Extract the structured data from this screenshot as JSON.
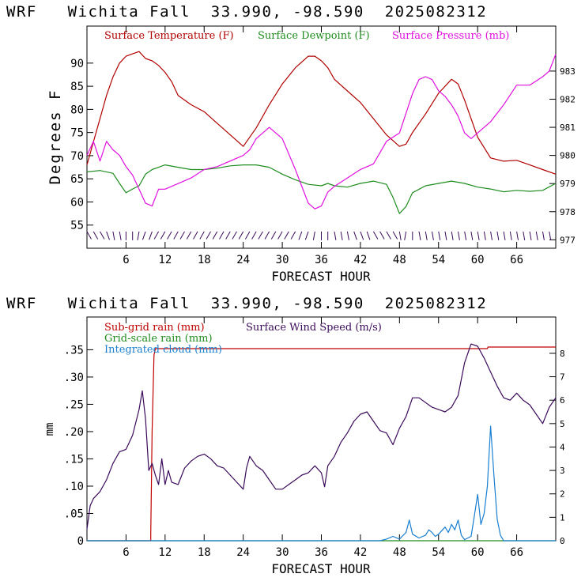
{
  "colors": {
    "temperature": "#b00000",
    "dewpoint": "#1e8c1e",
    "pressure": "#e010e0",
    "subgrid_rain": "#c00000",
    "gridscale_rain": "#1e8c1e",
    "cloud": "#1a7fd0",
    "wind": "#3a0a5a",
    "barb": "#3a0a5a"
  },
  "chart_data": [
    {
      "type": "line",
      "title": "WRF   Wichita Fall  33.990, -98.590  2025082312",
      "xlabel": "FORECAST HOUR",
      "ylabel": "Degrees F",
      "xlim": [
        0,
        72
      ],
      "x_ticks": [
        6,
        12,
        18,
        24,
        30,
        36,
        42,
        48,
        54,
        60,
        66
      ],
      "x_tick_labels": [
        "6",
        "12",
        "18",
        "24",
        "30",
        "36",
        "42",
        "48",
        "54",
        "60",
        "66"
      ],
      "ylim": [
        50,
        98
      ],
      "y_ticks": [
        55,
        60,
        65,
        70,
        75,
        80,
        85,
        90
      ],
      "y_tick_labels": [
        "55",
        "60",
        "65",
        "70",
        "75",
        "80",
        "85",
        "90"
      ],
      "y2lim": [
        976.7,
        984.6
      ],
      "y2_ticks": [
        977,
        978,
        979,
        980,
        981,
        982,
        983
      ],
      "y2_tick_labels": [
        "977",
        "978",
        "979",
        "980",
        "981",
        "982",
        "983"
      ],
      "series": [
        {
          "name": "Surface Temperature (F)",
          "axis": "left",
          "x": [
            0,
            1,
            2,
            3,
            4,
            5,
            6,
            7,
            8,
            9,
            10,
            11,
            12,
            13,
            14,
            16,
            18,
            20,
            22,
            24,
            26,
            28,
            30,
            32,
            34,
            35,
            36,
            37,
            38,
            40,
            42,
            44,
            46,
            48,
            49,
            50,
            52,
            54,
            56,
            57,
            58,
            59,
            60,
            62,
            64,
            66,
            68,
            70,
            72
          ],
          "y": [
            68,
            73,
            78,
            83,
            87,
            90,
            91.5,
            92,
            92.5,
            91,
            90.5,
            89.5,
            88,
            86,
            83,
            81,
            79.5,
            77,
            74.5,
            72,
            76,
            81,
            85.5,
            89,
            91.5,
            91.5,
            90.5,
            89,
            86.5,
            84,
            81.5,
            78,
            74.5,
            72,
            72.5,
            75,
            79,
            83.5,
            86.5,
            85.5,
            82,
            78,
            74,
            69.5,
            68.8,
            69,
            68,
            67,
            66
          ]
        },
        {
          "name": "Surface Dewpoint (F)",
          "axis": "left",
          "x": [
            0,
            2,
            4,
            5,
            6,
            7,
            8,
            9,
            10,
            11,
            12,
            14,
            16,
            18,
            20,
            22,
            24,
            26,
            28,
            30,
            32,
            34,
            36,
            37,
            38,
            40,
            42,
            44,
            46,
            47,
            48,
            49,
            50,
            52,
            54,
            56,
            58,
            60,
            62,
            64,
            66,
            68,
            70,
            72
          ],
          "y": [
            66.5,
            66.8,
            66.2,
            64,
            62,
            62.8,
            63.5,
            66,
            67,
            67.5,
            68,
            67.5,
            67,
            67,
            67.3,
            67.8,
            68,
            68,
            67.5,
            66,
            64.8,
            63.8,
            63.5,
            64,
            63.5,
            63.2,
            64,
            64.5,
            63.8,
            61,
            57.5,
            59,
            62,
            63.5,
            64,
            64.5,
            64,
            63.2,
            62.8,
            62.2,
            62.5,
            62.3,
            62.5,
            64
          ]
        },
        {
          "name": "Surface Pressure (mb)",
          "axis": "right",
          "x": [
            0,
            1,
            2,
            3,
            4,
            5,
            6,
            7,
            8,
            9,
            10,
            11,
            12,
            14,
            16,
            18,
            20,
            22,
            24,
            25,
            26,
            27,
            28,
            30,
            32,
            34,
            35,
            36,
            37,
            38,
            40,
            42,
            44,
            46,
            48,
            49,
            50,
            51,
            52,
            53,
            54,
            55,
            56,
            57,
            58,
            59,
            60,
            62,
            64,
            66,
            68,
            70,
            71,
            72
          ],
          "y": [
            980,
            980.5,
            979.8,
            980.5,
            980.2,
            980,
            979.6,
            979.3,
            978.8,
            978.3,
            978.2,
            978.8,
            978.8,
            979,
            979.2,
            979.5,
            979.6,
            979.8,
            980,
            980.2,
            980.6,
            980.8,
            981,
            980.6,
            979.5,
            978.3,
            978.1,
            978.2,
            978.7,
            978.9,
            979.2,
            979.5,
            979.7,
            980.5,
            980.8,
            981.5,
            982.2,
            982.7,
            982.8,
            982.7,
            982.3,
            982.1,
            981.8,
            981.4,
            980.8,
            980.6,
            980.8,
            981.2,
            981.8,
            982.5,
            982.5,
            982.8,
            983,
            983.6
          ]
        }
      ],
      "legend": [
        "Surface Temperature (F)",
        "Surface Dewpoint (F)",
        "Surface Pressure (mb)"
      ],
      "legend_placement": "top",
      "wind_barbs": {
        "x": [
          0,
          1,
          2,
          3,
          4,
          5,
          6,
          7,
          8,
          9,
          10,
          11,
          12,
          13,
          14,
          15,
          16,
          17,
          18,
          19,
          20,
          21,
          22,
          23,
          24,
          25,
          26,
          27,
          28,
          29,
          30,
          31,
          32,
          33,
          34,
          35,
          36,
          37,
          38,
          39,
          40,
          41,
          42,
          43,
          44,
          45,
          46,
          47,
          48,
          49,
          50,
          51,
          52,
          53,
          54,
          55,
          56,
          57,
          58,
          59,
          60,
          61,
          62,
          63,
          64,
          65,
          66,
          67,
          68,
          69,
          70,
          71
        ],
        "direction_deg": [
          150,
          150,
          150,
          160,
          170,
          170,
          180,
          180,
          190,
          200,
          200,
          210,
          210,
          210,
          210,
          210,
          210,
          210,
          210,
          210,
          210,
          210,
          210,
          210,
          210,
          210,
          210,
          210,
          210,
          210,
          210,
          210,
          210,
          200,
          200,
          190,
          180,
          180,
          170,
          170,
          170,
          160,
          160,
          160,
          150,
          150,
          150,
          150,
          170,
          190,
          180,
          170,
          170,
          170,
          170,
          170,
          170,
          170,
          170,
          170,
          170,
          170,
          170,
          170,
          170,
          170,
          170,
          170,
          170,
          170,
          170,
          170
        ]
      }
    },
    {
      "type": "line",
      "title": "WRF   Wichita Fall  33.990, -98.590  2025082312",
      "xlabel": "FORECAST HOUR",
      "ylabel": "mm",
      "xlim": [
        0,
        72
      ],
      "x_ticks": [
        6,
        12,
        18,
        24,
        30,
        36,
        42,
        48,
        54,
        60,
        66
      ],
      "x_tick_labels": [
        "6",
        "12",
        "18",
        "24",
        "30",
        "36",
        "42",
        "48",
        "54",
        "60",
        "66"
      ],
      "ylim": [
        0,
        0.41
      ],
      "y_ticks": [
        0,
        0.05,
        0.1,
        0.15,
        0.2,
        0.25,
        0.3,
        0.35
      ],
      "y_tick_labels": [
        "0",
        ".05",
        ".10",
        ".15",
        ".20",
        ".25",
        ".30",
        ".35"
      ],
      "y2lim": [
        0,
        9.55
      ],
      "y2_ticks": [
        0,
        1,
        2,
        3,
        4,
        5,
        6,
        7,
        8
      ],
      "y2_tick_labels": [
        "0",
        "1",
        "2",
        "3",
        "4",
        "5",
        "6",
        "7",
        "8"
      ],
      "series": [
        {
          "name": "Sub-grid rain (mm)",
          "axis": "left",
          "x": [
            0,
            9.8,
            9.8,
            10,
            10.3,
            10.5,
            20,
            40,
            61.5,
            61.6,
            72
          ],
          "y": [
            0,
            0,
            0.012,
            0.2,
            0.34,
            0.352,
            0.352,
            0.352,
            0.352,
            0.355,
            0.355
          ]
        },
        {
          "name": "Grid-scale rain (mm)",
          "axis": "left",
          "x": [
            0,
            72
          ],
          "y": [
            0,
            0
          ]
        },
        {
          "name": "Integrated cloud (mm)",
          "axis": "left",
          "x": [
            0,
            45,
            46,
            47,
            48,
            49,
            49.5,
            50,
            51,
            52,
            52.5,
            53,
            53.5,
            54,
            55,
            55.5,
            56,
            56.5,
            57,
            57.5,
            58,
            59,
            59.5,
            60,
            60.5,
            61,
            61.5,
            62,
            62.5,
            63,
            63.5,
            64,
            72
          ],
          "y": [
            0,
            0,
            0.003,
            0.008,
            0.003,
            0.015,
            0.038,
            0.012,
            0.005,
            0.01,
            0.02,
            0.015,
            0.008,
            0.012,
            0.025,
            0.015,
            0.03,
            0.02,
            0.038,
            0.01,
            0.002,
            0.008,
            0.045,
            0.085,
            0.03,
            0.05,
            0.1,
            0.21,
            0.12,
            0.04,
            0.01,
            0.0,
            0.0
          ]
        },
        {
          "name": "Surface Wind Speed (m/s)",
          "axis": "right",
          "x": [
            0,
            0.5,
            1,
            2,
            3,
            4,
            5,
            6,
            7,
            8,
            8.5,
            9,
            9.5,
            10,
            10.5,
            11,
            11.5,
            12,
            12.5,
            13,
            14,
            15,
            16,
            17,
            18,
            19,
            20,
            21,
            22,
            23,
            24,
            24.5,
            25,
            26,
            27,
            28,
            29,
            30,
            31,
            32,
            33,
            34,
            35,
            36,
            36.5,
            37,
            38,
            39,
            40,
            41,
            42,
            43,
            44,
            45,
            46,
            47,
            48,
            49,
            50,
            51,
            52,
            53,
            54,
            55,
            56,
            57,
            58,
            59,
            60,
            61,
            62,
            63,
            64,
            65,
            66,
            67,
            68,
            69,
            70,
            71,
            72
          ],
          "y": [
            0.5,
            1.5,
            1.8,
            2.1,
            2.6,
            3.3,
            3.8,
            3.9,
            4.5,
            5.6,
            6.4,
            5.2,
            3.0,
            3.3,
            2.8,
            2.4,
            3.5,
            2.4,
            3.0,
            2.5,
            2.4,
            3.1,
            3.4,
            3.6,
            3.7,
            3.5,
            3.2,
            3.1,
            2.8,
            2.5,
            2.2,
            3.1,
            3.6,
            3.2,
            3.0,
            2.6,
            2.2,
            2.2,
            2.4,
            2.6,
            2.8,
            2.9,
            3.2,
            2.9,
            2.3,
            3.2,
            3.6,
            4.2,
            4.6,
            5.1,
            5.4,
            5.5,
            5.1,
            4.7,
            4.6,
            4.1,
            4.8,
            5.3,
            6.1,
            6.1,
            5.9,
            5.7,
            5.6,
            5.5,
            5.7,
            6.2,
            7.6,
            8.4,
            8.3,
            7.8,
            7.2,
            6.6,
            6.1,
            6.0,
            6.3,
            6.0,
            5.8,
            5.4,
            5.0,
            5.7,
            6.1
          ]
        }
      ],
      "legend": [
        "Sub-grid rain (mm)",
        "Grid-scale rain (mm)",
        "Integrated cloud (mm)",
        "Surface Wind Speed (m/s)"
      ],
      "legend_placement": "top-left"
    }
  ]
}
